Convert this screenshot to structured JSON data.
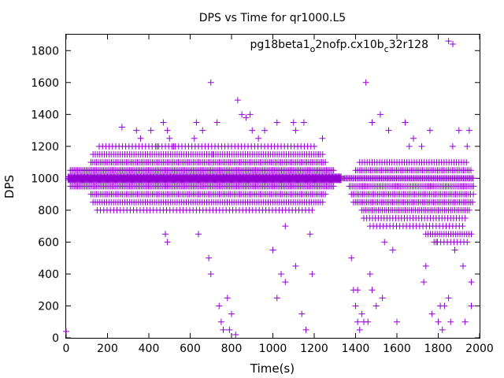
{
  "chart_data": {
    "type": "scatter",
    "title": "DPS vs Time for qr1000.L5",
    "xlabel": "Time(s)",
    "ylabel": "DPS",
    "xlim": [
      0,
      2000
    ],
    "ylim": [
      0,
      1900
    ],
    "xticks": [
      0,
      200,
      400,
      600,
      800,
      1000,
      1200,
      1400,
      1600,
      1800,
      2000
    ],
    "yticks": [
      0,
      200,
      400,
      600,
      800,
      1000,
      1200,
      1400,
      1600,
      1800
    ],
    "grid": false,
    "legend_position": "top-right",
    "marker": "+",
    "series": [
      {
        "name": "pg18beta1_o2nofp.cx10b_c32r128",
        "legend_parts": {
          "p1": "pg18beta1",
          "s1": "o",
          "p2": "2nofp.cx10b",
          "s2": "c",
          "p3": "32r128"
        },
        "color": "#9400d3",
        "bands": [
          {
            "x": [
              10,
              1330
            ],
            "y": 1000,
            "step": 3
          },
          {
            "x": [
              10,
              1330
            ],
            "y": 990,
            "step": 4
          },
          {
            "x": [
              10,
              1330
            ],
            "y": 1010,
            "step": 5
          },
          {
            "x": [
              20,
              1300
            ],
            "y": 950,
            "step": 7
          },
          {
            "x": [
              20,
              1300
            ],
            "y": 1050,
            "step": 7
          },
          {
            "x": [
              120,
              1260
            ],
            "y": 900,
            "step": 9
          },
          {
            "x": [
              120,
              1260
            ],
            "y": 1100,
            "step": 9
          },
          {
            "x": [
              130,
              1250
            ],
            "y": 850,
            "step": 11
          },
          {
            "x": [
              130,
              1250
            ],
            "y": 1150,
            "step": 11
          },
          {
            "x": [
              150,
              1200
            ],
            "y": 800,
            "step": 16
          },
          {
            "x": [
              160,
              1200
            ],
            "y": 1200,
            "step": 16
          },
          {
            "x": [
              1340,
              1970
            ],
            "y": 1000,
            "step": 6
          },
          {
            "x": [
              1370,
              1970
            ],
            "y": 950,
            "step": 8
          },
          {
            "x": [
              1380,
              1960
            ],
            "y": 900,
            "step": 9
          },
          {
            "x": [
              1390,
              1970
            ],
            "y": 850,
            "step": 9
          },
          {
            "x": [
              1400,
              1960
            ],
            "y": 1050,
            "step": 9
          },
          {
            "x": [
              1420,
              1940
            ],
            "y": 1100,
            "step": 12
          },
          {
            "x": [
              1430,
              1950
            ],
            "y": 800,
            "step": 10
          },
          {
            "x": [
              1440,
              1940
            ],
            "y": 750,
            "step": 14
          },
          {
            "x": [
              1470,
              1920
            ],
            "y": 700,
            "step": 16
          },
          {
            "x": [
              1740,
              1970
            ],
            "y": 650,
            "step": 11
          },
          {
            "x": [
              1780,
              1950
            ],
            "y": 600,
            "step": 16
          }
        ],
        "points": [
          [
            0,
            40
          ],
          [
            270,
            1320
          ],
          [
            340,
            1300
          ],
          [
            360,
            1250
          ],
          [
            410,
            1300
          ],
          [
            440,
            1200
          ],
          [
            480,
            650
          ],
          [
            490,
            600
          ],
          [
            470,
            1350
          ],
          [
            490,
            1300
          ],
          [
            500,
            1250
          ],
          [
            520,
            1200
          ],
          [
            620,
            1250
          ],
          [
            630,
            1350
          ],
          [
            640,
            650
          ],
          [
            660,
            1300
          ],
          [
            690,
            500
          ],
          [
            700,
            400
          ],
          [
            700,
            1600
          ],
          [
            710,
            1150
          ],
          [
            730,
            1350
          ],
          [
            740,
            200
          ],
          [
            750,
            100
          ],
          [
            760,
            50
          ],
          [
            780,
            250
          ],
          [
            790,
            50
          ],
          [
            800,
            150
          ],
          [
            820,
            20
          ],
          [
            830,
            1490
          ],
          [
            850,
            1400
          ],
          [
            870,
            1380
          ],
          [
            890,
            1400
          ],
          [
            900,
            1300
          ],
          [
            930,
            1250
          ],
          [
            960,
            1300
          ],
          [
            1020,
            1350
          ],
          [
            1000,
            550
          ],
          [
            1020,
            250
          ],
          [
            1040,
            400
          ],
          [
            1060,
            700
          ],
          [
            1060,
            350
          ],
          [
            1100,
            1350
          ],
          [
            1110,
            1300
          ],
          [
            1110,
            450
          ],
          [
            1120,
            1200
          ],
          [
            1140,
            150
          ],
          [
            1150,
            1350
          ],
          [
            1160,
            50
          ],
          [
            1180,
            650
          ],
          [
            1190,
            400
          ],
          [
            1220,
            1150
          ],
          [
            1240,
            1250
          ],
          [
            1380,
            500
          ],
          [
            1390,
            300
          ],
          [
            1410,
            300
          ],
          [
            1400,
            200
          ],
          [
            1410,
            100
          ],
          [
            1420,
            50
          ],
          [
            1430,
            150
          ],
          [
            1440,
            100
          ],
          [
            1450,
            1600
          ],
          [
            1460,
            100
          ],
          [
            1470,
            400
          ],
          [
            1480,
            1350
          ],
          [
            1480,
            300
          ],
          [
            1500,
            200
          ],
          [
            1520,
            1400
          ],
          [
            1530,
            250
          ],
          [
            1540,
            600
          ],
          [
            1560,
            1300
          ],
          [
            1580,
            550
          ],
          [
            1600,
            100
          ],
          [
            1640,
            1350
          ],
          [
            1660,
            1200
          ],
          [
            1680,
            1250
          ],
          [
            1720,
            1200
          ],
          [
            1730,
            350
          ],
          [
            1740,
            450
          ],
          [
            1760,
            1300
          ],
          [
            1770,
            150
          ],
          [
            1790,
            600
          ],
          [
            1800,
            100
          ],
          [
            1810,
            200
          ],
          [
            1820,
            50
          ],
          [
            1830,
            200
          ],
          [
            1850,
            1860
          ],
          [
            1850,
            250
          ],
          [
            1860,
            100
          ],
          [
            1870,
            1200
          ],
          [
            1880,
            550
          ],
          [
            1900,
            1300
          ],
          [
            1920,
            450
          ],
          [
            1930,
            100
          ],
          [
            1940,
            1200
          ],
          [
            1950,
            1300
          ],
          [
            1960,
            350
          ],
          [
            1960,
            200
          ],
          [
            1970,
            900
          ],
          [
            1970,
            950
          ]
        ]
      }
    ]
  }
}
